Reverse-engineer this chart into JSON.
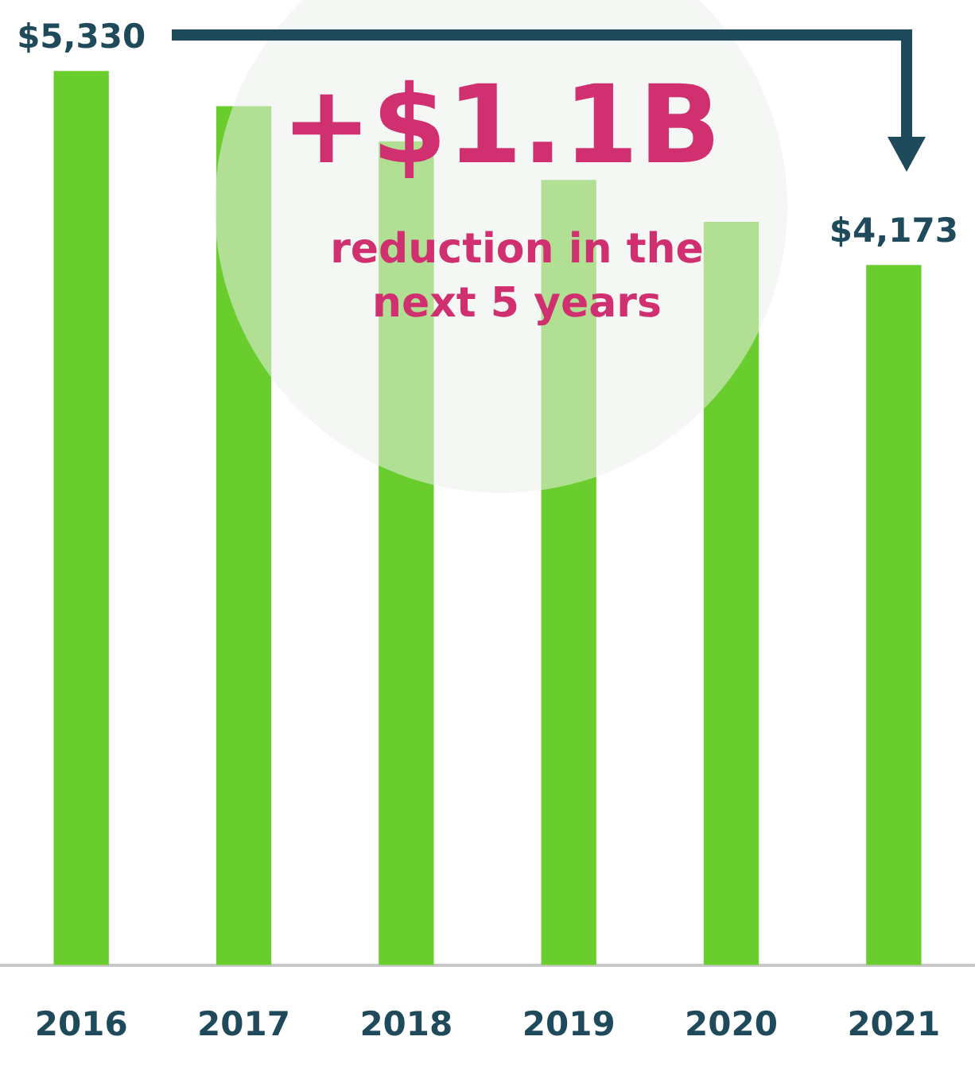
{
  "chart_data": {
    "type": "bar",
    "categories": [
      "2016",
      "2017",
      "2018",
      "2019",
      "2020",
      "2021"
    ],
    "values": [
      5330,
      5120,
      4910,
      4680,
      4430,
      4173
    ],
    "value_labels": [
      "$5,330",
      null,
      null,
      null,
      null,
      "$4,173"
    ],
    "color": "#6acd2e",
    "grid": false,
    "legend": false,
    "annotations": [
      "+$1.1B",
      "reduction in the next 5 years"
    ]
  }
}
